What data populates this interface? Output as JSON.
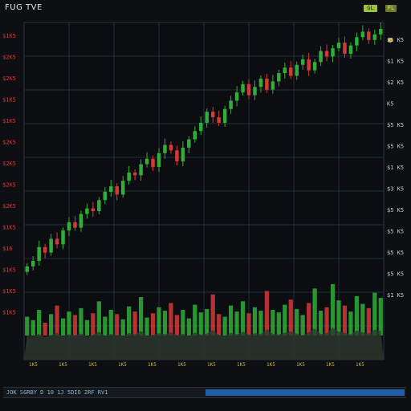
{
  "title": "FUG TVE",
  "badges": [
    "GL",
    "FL"
  ],
  "footer": {
    "text": "JOK SGRBY D 10 1J 5DIO 2RF RV1"
  },
  "colors": {
    "up": "#2fae3a",
    "down": "#d23a3a",
    "grid": "#22303a",
    "background": "#0d0f12",
    "volume_fill": "#2a3a2e",
    "footer_bar": "#1f5fa8"
  },
  "chart_data": {
    "type": "candlestick",
    "grid": true,
    "left_tick_labels": [
      "$1K5",
      "$2K5",
      "$2K5",
      "$1K5",
      "$1K5",
      "$2K5",
      "$2K5",
      "$2K5",
      "$2K5",
      "$1K5",
      "$16",
      "$1K5",
      "$1K5",
      "$1K5"
    ],
    "right_tick_labels": [
      "$5 K5",
      "$1 K5",
      "$2 K5",
      "K5",
      "$5 K5",
      "$5 K5",
      "$1 K5",
      "$3 K5",
      "$5 K5",
      "$5 K5",
      "$5 K5",
      "$5 K5",
      "$1 K5"
    ],
    "bottom_tick_labels": [
      "1K5",
      "1K5",
      "1K5",
      "1K5",
      "1K5",
      "1K5",
      "1K5",
      "1K5",
      "1K5",
      "1K5",
      "1K5",
      "1K5"
    ],
    "price_series": [
      14,
      16,
      21,
      19,
      24,
      22,
      27,
      30,
      28,
      33,
      35,
      34,
      38,
      41,
      43,
      40,
      45,
      48,
      47,
      51,
      53,
      50,
      55,
      58,
      56,
      52,
      57,
      60,
      63,
      66,
      70,
      68,
      66,
      71,
      74,
      77,
      80,
      76,
      79,
      82,
      78,
      81,
      84,
      86,
      83,
      87,
      89,
      85,
      88,
      92,
      90,
      93,
      95,
      91,
      94,
      97,
      99,
      96,
      98,
      100
    ],
    "volume_series": [
      22,
      18,
      30,
      15,
      25,
      35,
      20,
      28,
      24,
      32,
      18,
      26,
      40,
      22,
      30,
      25,
      19,
      34,
      28,
      45,
      21,
      26,
      33,
      29,
      38,
      24,
      30,
      20,
      36,
      27,
      31,
      48,
      25,
      22,
      35,
      28,
      40,
      26,
      33,
      29,
      52,
      30,
      27,
      36,
      42,
      31,
      24,
      38,
      55,
      29,
      33,
      60,
      41,
      35,
      28,
      46,
      37,
      32,
      50,
      44
    ],
    "price_range": [
      0,
      100
    ]
  }
}
